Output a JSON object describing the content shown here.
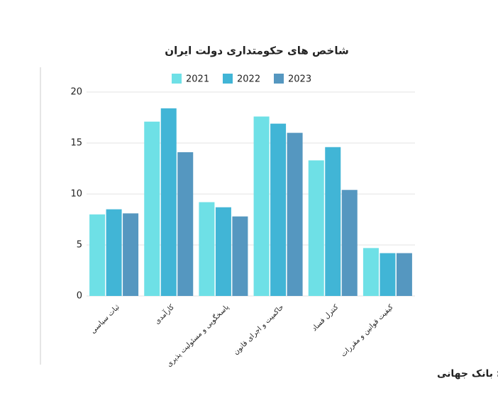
{
  "chart_data": {
    "type": "bar",
    "title": "شاخص های حکومتداری دولت ایران",
    "source": "منبع: بانک جهانی",
    "categories": [
      "ثبات سیاسی",
      "کارآمدی",
      "پاسخگویی و مسئولیت پذیری",
      "حاکمیت و اجرای قانون",
      "کنترل فساد",
      "کیفیت قوانین و مقررات"
    ],
    "series": [
      {
        "name": "2021",
        "color": "#6ee0e6",
        "values": [
          8.0,
          17.1,
          9.2,
          17.6,
          13.3,
          4.7
        ]
      },
      {
        "name": "2022",
        "color": "#41b5d6",
        "values": [
          8.5,
          18.4,
          8.7,
          16.9,
          14.6,
          4.2
        ]
      },
      {
        "name": "2023",
        "color": "#5597c0",
        "values": [
          8.1,
          14.1,
          7.8,
          16.0,
          10.4,
          4.2
        ]
      }
    ],
    "ylim": [
      0,
      20
    ],
    "yticks": [
      0,
      5,
      10,
      15,
      20
    ],
    "grid": true,
    "legend": "top"
  }
}
